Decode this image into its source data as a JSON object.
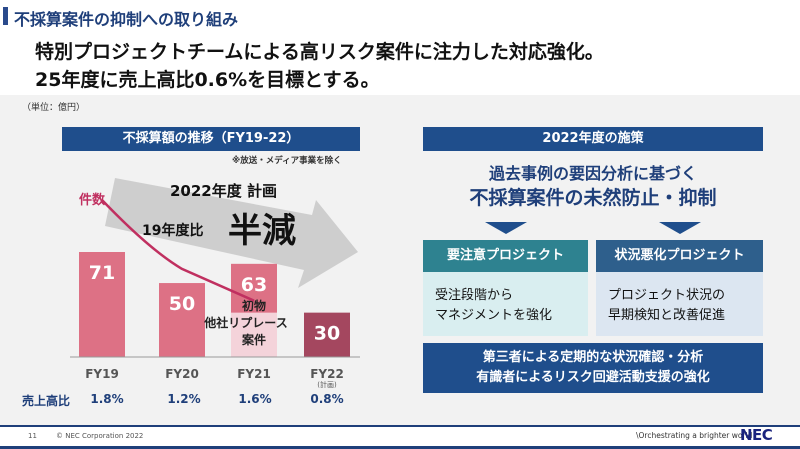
{
  "header": {
    "title": "不採算案件の抑制への取り組み",
    "subtitle_line1": "特別プロジェクトチームによる高リスク案件に注力した対応強化。",
    "subtitle_line2": "25年度に売上高比0.6%を目標とする。"
  },
  "unit": "（単位：億円）",
  "left_panel": {
    "heading": "不採算額の推移（FY19-22）",
    "note": "※放送・メディア事業を除く",
    "count_label": "件数",
    "plan_line1": "2022年度 計画",
    "plan_line2_prefix": "19年度比",
    "plan_line2_emphasis": "半減",
    "sales_ratio_label": "売上高比",
    "sales_ratios": [
      "1.8%",
      "1.2%",
      "1.6%",
      "0.8%"
    ]
  },
  "chart_data": {
    "type": "bar",
    "categories": [
      "FY19",
      "FY20",
      "FY21",
      "FY22"
    ],
    "category_notes": [
      "",
      "",
      "",
      "(計画)"
    ],
    "values": [
      71,
      50,
      63,
      30
    ],
    "fy21_breakdown": {
      "lower_value": 30,
      "lower_label_lines": [
        "初物",
        "他社リプレース",
        "案件"
      ]
    },
    "count_line": {
      "name": "件数",
      "relative_points": [
        1.0,
        0.35,
        0.05
      ]
    },
    "colors": {
      "bar": "#dd7185",
      "bar_fy21_lower": "#f4d3da",
      "bar_fy22": "#a4475f",
      "count_line": "#c03060",
      "arrow": "#c8c8c8"
    }
  },
  "right_panel": {
    "heading": "2022年度の施策",
    "intro_line1": "過去事例の要因分析に基づく",
    "intro_line2": "不採算案件の未然防止・抑制",
    "project1": {
      "title": "要注意プロジェクト",
      "body_line1": "受注段階から",
      "body_line2": "マネジメントを強化"
    },
    "project2": {
      "title": "状況悪化プロジェクト",
      "body_line1": "プロジェクト状況の",
      "body_line2": "早期検知と改善促進"
    },
    "third_party_line1": "第三者による定期的な状況確認・分析",
    "third_party_line2": "有識者によるリスク回避活動支援の強化"
  },
  "footer": {
    "page_number": "11",
    "copyright": "© NEC Corporation 2022",
    "tagline": "\\Orchestrating a brighter world",
    "logo": "NEC"
  }
}
